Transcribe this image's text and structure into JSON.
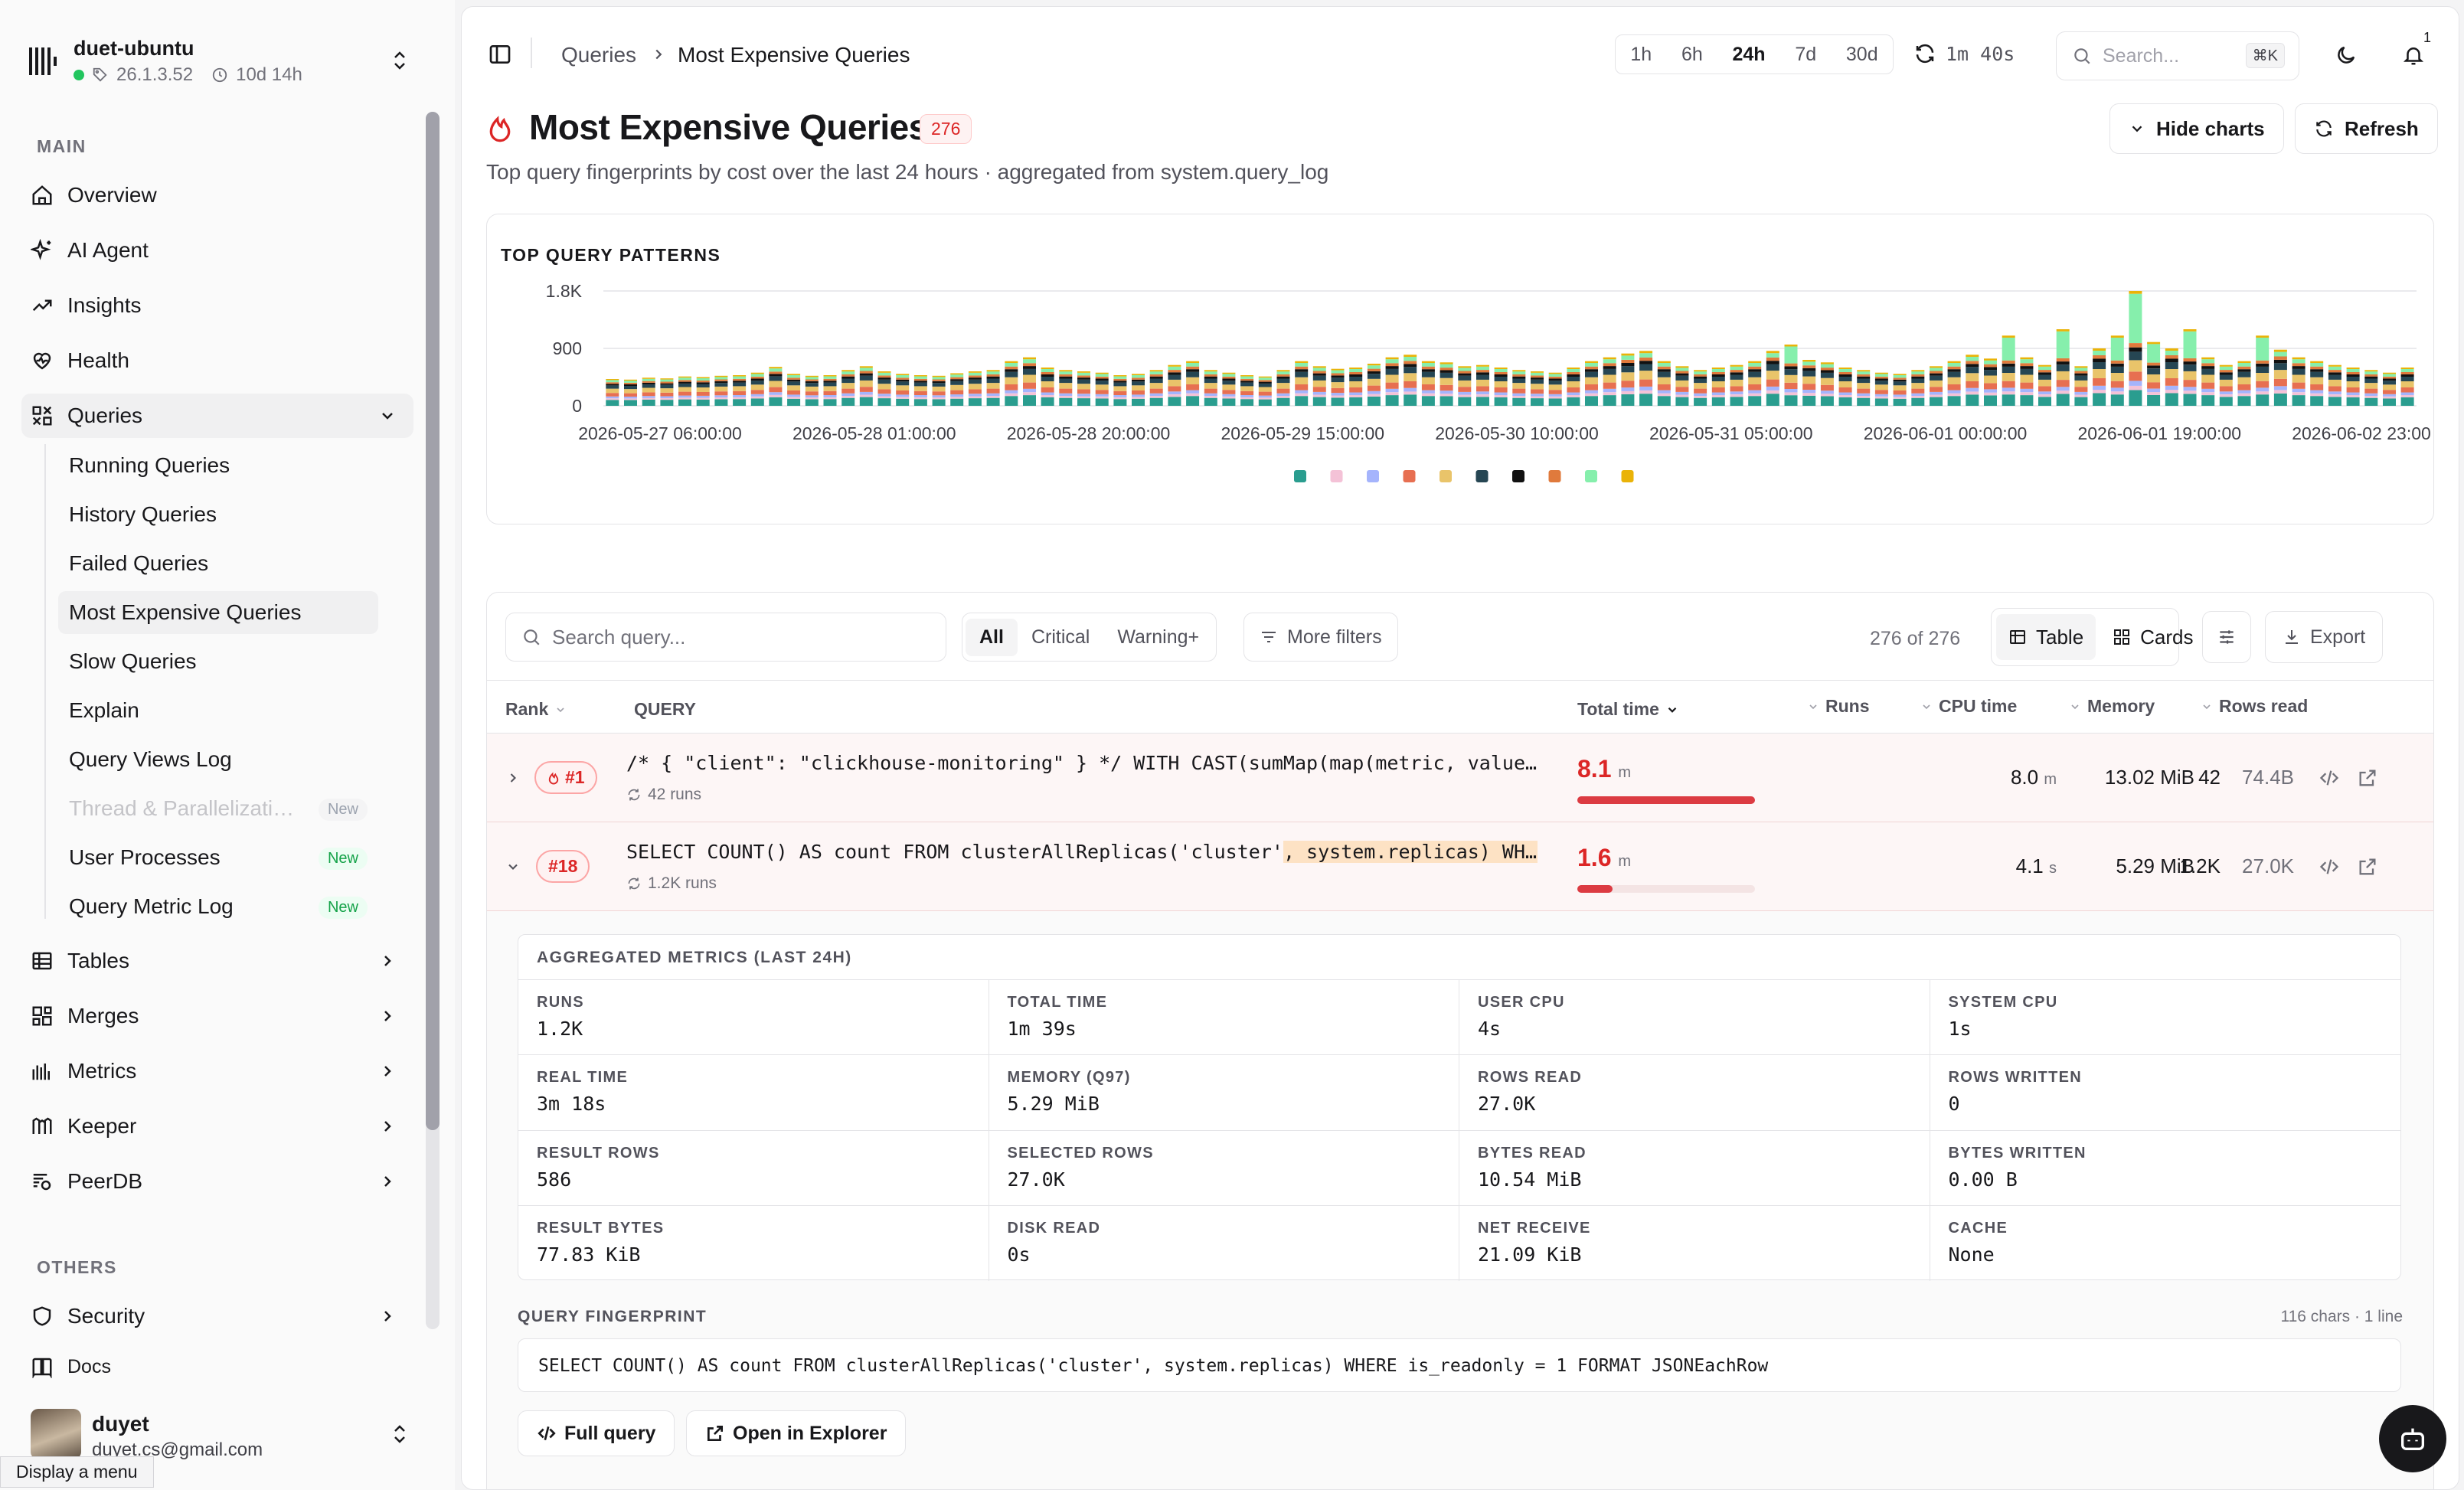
{
  "app": {
    "host_name": "duet-ubuntu",
    "version": "26.1.3.52",
    "uptime": "10d 14h"
  },
  "sidebar": {
    "main_label": "MAIN",
    "others_label": "OTHERS",
    "items": [
      {
        "label": "Overview",
        "icon": "home-icon"
      },
      {
        "label": "AI Agent",
        "icon": "sparkles-icon"
      },
      {
        "label": "Insights",
        "icon": "trend-up-icon"
      },
      {
        "label": "Health",
        "icon": "heart-pulse-icon"
      },
      {
        "label": "Queries",
        "icon": "queries-icon"
      },
      {
        "label": "Tables",
        "icon": "table-icon"
      },
      {
        "label": "Merges",
        "icon": "merge-icon"
      },
      {
        "label": "Metrics",
        "icon": "bar-chart-icon"
      },
      {
        "label": "Keeper",
        "icon": "keeper-icon"
      },
      {
        "label": "PeerDB",
        "icon": "peerdb-icon"
      }
    ],
    "query_items": [
      {
        "label": "Running Queries"
      },
      {
        "label": "History Queries"
      },
      {
        "label": "Failed Queries"
      },
      {
        "label": "Most Expensive Queries"
      },
      {
        "label": "Slow Queries"
      },
      {
        "label": "Explain"
      },
      {
        "label": "Query Views Log"
      },
      {
        "label": "Thread & Parallelizati…",
        "badge": "New"
      },
      {
        "label": "User Processes",
        "badge": "New"
      },
      {
        "label": "Query Metric Log",
        "badge": "New"
      }
    ],
    "others": [
      {
        "label": "Security",
        "icon": "shield-icon"
      },
      {
        "label": "Docs",
        "icon": "book-icon"
      }
    ],
    "user": {
      "name": "duyet",
      "email": "duyet.cs@gmail.com"
    },
    "tooltip": "Display a menu"
  },
  "header": {
    "breadcrumb_parent": "Queries",
    "breadcrumb_current": "Most Expensive Queries",
    "ranges": [
      "1h",
      "6h",
      "24h",
      "7d",
      "30d"
    ],
    "selected_range": "24h",
    "refresh_countdown": "1m 40s",
    "search_placeholder": "Search...",
    "search_shortcut": "⌘K",
    "notification_count": "1"
  },
  "page": {
    "title": "Most Expensive Queries",
    "count_badge": "276",
    "subtitle": "Top query fingerprints by cost over the last 24 hours · aggregated from system.query_log",
    "hide_charts_label": "Hide charts",
    "refresh_label": "Refresh"
  },
  "chart_data": {
    "type": "bar",
    "stacked": true,
    "title": "TOP QUERY PATTERNS",
    "ylim": [
      0,
      1800
    ],
    "y_ticks": [
      "1.8K",
      "900",
      "0"
    ],
    "x_tick_labels": [
      "2026-05-27 06:00:00",
      "2026-05-28 01:00:00",
      "2026-05-28 20:00:00",
      "2026-05-29 15:00:00",
      "2026-05-30 10:00:00",
      "2026-05-31 05:00:00",
      "2026-06-01 00:00:00",
      "2026-06-01 19:00:00",
      "2026-06-02 23:00:00"
    ],
    "legend_placement": "bottom",
    "grid": true,
    "series_colors": [
      "#2a9d8f",
      "#f4c2d7",
      "#a5b4fc",
      "#e76f51",
      "#e9c46a",
      "#264653",
      "#111111",
      "#e07a3c",
      "#86efac",
      "#eab308"
    ],
    "totals_sample": [
      420,
      410,
      440,
      430,
      460,
      450,
      470,
      480,
      520,
      610,
      500,
      470,
      480,
      560,
      620,
      540,
      500,
      480,
      470,
      510,
      540,
      560,
      700,
      760,
      600,
      560,
      540,
      520,
      480,
      500,
      560,
      640,
      700,
      560,
      520,
      480,
      460,
      560,
      700,
      620,
      580,
      600,
      660,
      760,
      800,
      700,
      680,
      620,
      640,
      600,
      560,
      540,
      520,
      600,
      700,
      760,
      820,
      860,
      700,
      620,
      560,
      600,
      640,
      700,
      860,
      960,
      720,
      680,
      600,
      560,
      520,
      500,
      560,
      620,
      700,
      800,
      740,
      1100,
      760,
      640,
      1200,
      620,
      900,
      1100,
      1800,
      1000,
      900,
      1200,
      760,
      640,
      700,
      1100,
      880,
      760,
      700,
      640,
      600,
      560,
      520,
      600
    ]
  },
  "filters": {
    "search_placeholder": "Search query...",
    "segments": [
      "All",
      "Critical",
      "Warning+"
    ],
    "selected_segment": "All",
    "more_filters_label": "More filters",
    "count_text": "276 of 276",
    "view_table_label": "Table",
    "view_cards_label": "Cards",
    "export_label": "Export"
  },
  "table": {
    "columns": {
      "rank": "Rank",
      "query": "QUERY",
      "total_time": "Total time",
      "runs": "Runs",
      "cpu_time": "CPU time",
      "memory": "Memory",
      "rows_read": "Rows read"
    },
    "rows": [
      {
        "rank": "#1",
        "query": "/* { \"client\": \"clickhouse-monitoring\" } */ WITH CAST(sumMap(map(metric, value)…",
        "runs_sub": "42 runs",
        "total_time": "8.1",
        "total_time_unit": "m",
        "total_time_fraction": 1.0,
        "runs": "42",
        "cpu_time": "8.0",
        "cpu_unit": "m",
        "memory": "13.02 MiB",
        "rows_read": "74.4B"
      },
      {
        "rank": "#18",
        "query_prefix": "SELECT COUNT() AS count FROM clusterAllReplicas('cluster'",
        "query_highlight": ", system.replicas) WHE…",
        "runs_sub": "1.2K runs",
        "total_time": "1.6",
        "total_time_unit": "m",
        "total_time_fraction": 0.2,
        "runs": "1.2K",
        "cpu_time": "4.1",
        "cpu_unit": "s",
        "memory": "5.29 MiB",
        "rows_read": "27.0K"
      }
    ]
  },
  "detail": {
    "aggregated_title": "AGGREGATED METRICS (LAST 24H)",
    "metrics": [
      {
        "label": "RUNS",
        "value": "1.2K"
      },
      {
        "label": "TOTAL TIME",
        "value": "1m 39s"
      },
      {
        "label": "USER CPU",
        "value": "4s"
      },
      {
        "label": "SYSTEM CPU",
        "value": "1s"
      },
      {
        "label": "REAL TIME",
        "value": "3m 18s"
      },
      {
        "label": "MEMORY (Q97)",
        "value": "5.29 MiB"
      },
      {
        "label": "ROWS READ",
        "value": "27.0K"
      },
      {
        "label": "ROWS WRITTEN",
        "value": "0"
      },
      {
        "label": "RESULT ROWS",
        "value": "586"
      },
      {
        "label": "SELECTED ROWS",
        "value": "27.0K"
      },
      {
        "label": "BYTES READ",
        "value": "10.54 MiB"
      },
      {
        "label": "BYTES WRITTEN",
        "value": "0.00 B"
      },
      {
        "label": "RESULT BYTES",
        "value": "77.83 KiB"
      },
      {
        "label": "DISK READ",
        "value": "0s"
      },
      {
        "label": "NET RECEIVE",
        "value": "21.09 KiB"
      },
      {
        "label": "CACHE",
        "value": "None"
      }
    ],
    "fingerprint_label": "QUERY FINGERPRINT",
    "fingerprint_meta": "116 chars · 1 line",
    "fingerprint": "SELECT COUNT() AS count FROM clusterAllReplicas('cluster', system.replicas) WHERE is_readonly = 1 FORMAT JSONEachRow",
    "full_query_label": "Full query",
    "open_explorer_label": "Open in Explorer"
  },
  "colors": {
    "accent_red": "#dc2626",
    "active_green": "#22c55e"
  }
}
